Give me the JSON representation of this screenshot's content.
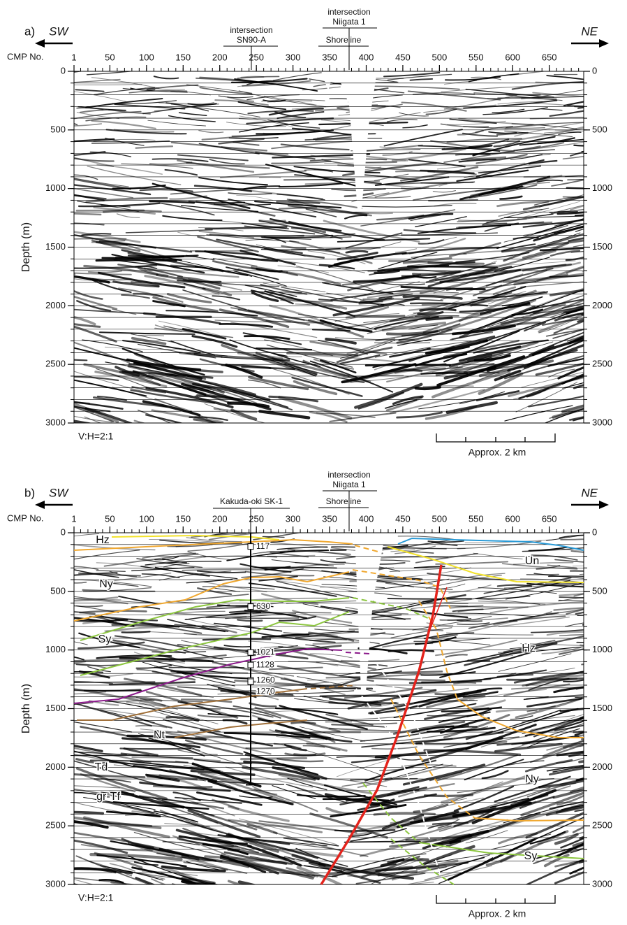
{
  "chart_data": [
    {
      "type": "seismic-section",
      "panel_label": "a)",
      "left_direction": "SW",
      "right_direction": "NE",
      "x_axis_label": "CMP No.",
      "y_axis_label": "Depth (m)",
      "xlim": [
        1,
        697
      ],
      "xticks": [
        1,
        50,
        100,
        150,
        200,
        250,
        300,
        350,
        400,
        450,
        500,
        550,
        600,
        650
      ],
      "ylim": [
        0,
        3000
      ],
      "yticks": [
        0,
        500,
        1000,
        1500,
        2000,
        2500,
        3000
      ],
      "grid": true,
      "intersections": [
        {
          "title": "intersection",
          "name": "SN90-A"
        },
        {
          "title": "intersection",
          "name": "Niigata 1"
        }
      ],
      "shoreline": "Shoreline",
      "aspect_note": "V:H=2:1",
      "scale_label": "Approx. 2 km"
    },
    {
      "type": "seismic-section",
      "panel_label": "b)",
      "left_direction": "SW",
      "right_direction": "NE",
      "x_axis_label": "CMP No.",
      "y_axis_label": "Depth (m)",
      "xlim": [
        1,
        697
      ],
      "xticks": [
        1,
        50,
        100,
        150,
        200,
        250,
        300,
        350,
        400,
        450,
        500,
        550,
        600,
        650
      ],
      "ylim": [
        0,
        3000
      ],
      "yticks": [
        0,
        500,
        1000,
        1500,
        2000,
        2500,
        3000
      ],
      "grid": true,
      "intersections": [
        {
          "title": "intersection",
          "name": "Niigata 1"
        }
      ],
      "well": {
        "name": "Kakuda-oki SK-1",
        "markers": [
          117,
          630,
          1021,
          1128,
          1260,
          1270
        ]
      },
      "horizon_labels": [
        "Hz",
        "Un",
        "Ny",
        "Sy",
        "Hz",
        "Nt",
        "Td",
        "gr-Tf",
        "Ny",
        "Sy"
      ],
      "shoreline": "Shoreline",
      "aspect_note": "V:H=2:1",
      "scale_label": "Approx. 2 km"
    }
  ]
}
